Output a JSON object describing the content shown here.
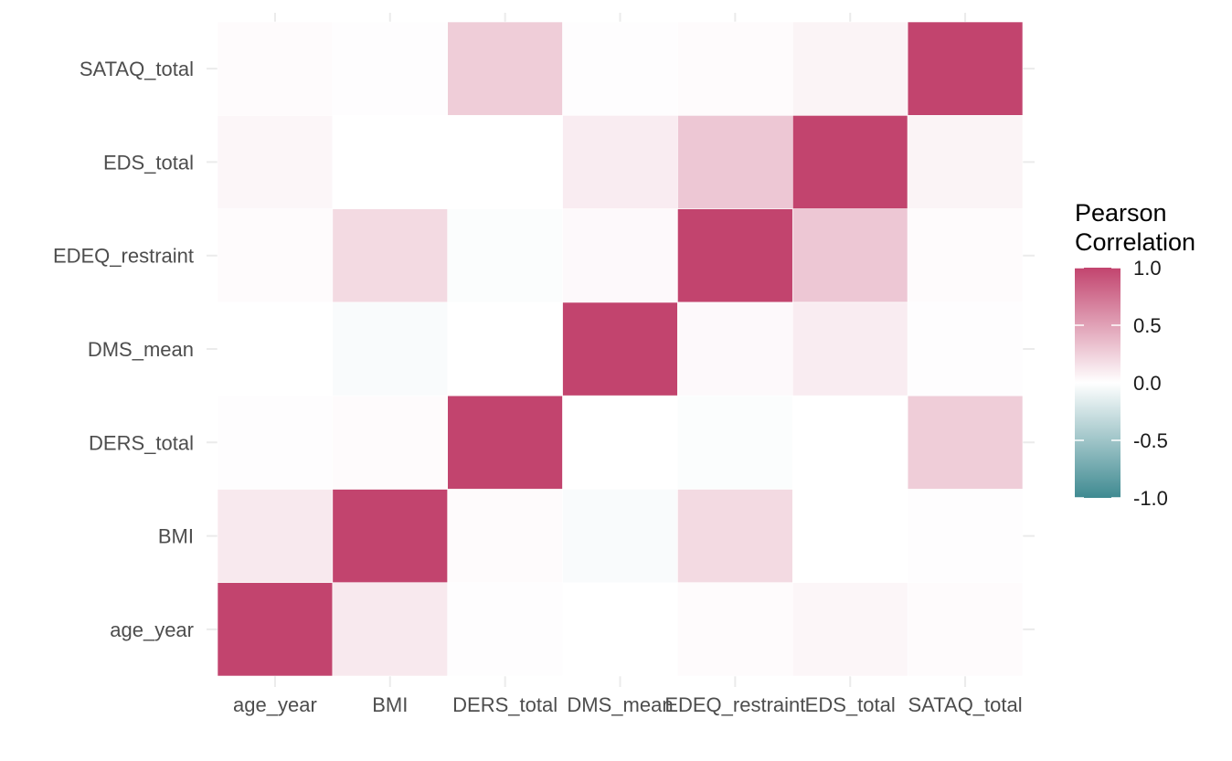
{
  "chart_data": {
    "type": "heatmap",
    "title": "",
    "xlabel": "",
    "ylabel": "",
    "x_categories": [
      "age_year",
      "BMI",
      "DERS_total",
      "DMS_mean",
      "EDEQ_restraint",
      "EDS_total",
      "SATAQ_total"
    ],
    "y_categories": [
      "age_year",
      "BMI",
      "DERS_total",
      "DMS_mean",
      "EDEQ_restraint",
      "EDS_total",
      "SATAQ_total"
    ],
    "values": [
      [
        1.0,
        0.12,
        0.01,
        0.0,
        0.02,
        0.05,
        0.02
      ],
      [
        0.12,
        1.0,
        0.02,
        -0.03,
        0.2,
        0.0,
        0.01
      ],
      [
        0.01,
        0.02,
        1.0,
        0.0,
        -0.02,
        0.0,
        0.27
      ],
      [
        0.0,
        -0.03,
        0.0,
        1.0,
        0.03,
        0.1,
        0.01
      ],
      [
        0.02,
        0.2,
        -0.02,
        0.03,
        1.0,
        0.3,
        0.02
      ],
      [
        0.05,
        0.0,
        0.0,
        0.1,
        0.3,
        1.0,
        0.06
      ],
      [
        0.02,
        0.01,
        0.27,
        0.01,
        0.02,
        0.06,
        1.0
      ]
    ],
    "color_scale": {
      "low": "#3F8A91",
      "mid": "#FFFFFF",
      "high": "#C2446E",
      "range": [
        -1,
        1
      ]
    },
    "legend": {
      "title_lines": [
        "Pearson",
        "Correlation"
      ],
      "ticks": [
        1.0,
        0.5,
        0.0,
        -0.5,
        -1.0
      ],
      "tick_labels": [
        "1.0",
        "0.5",
        "0.0",
        "-0.5",
        "-1.0"
      ],
      "placement": "right"
    },
    "grid": true
  }
}
